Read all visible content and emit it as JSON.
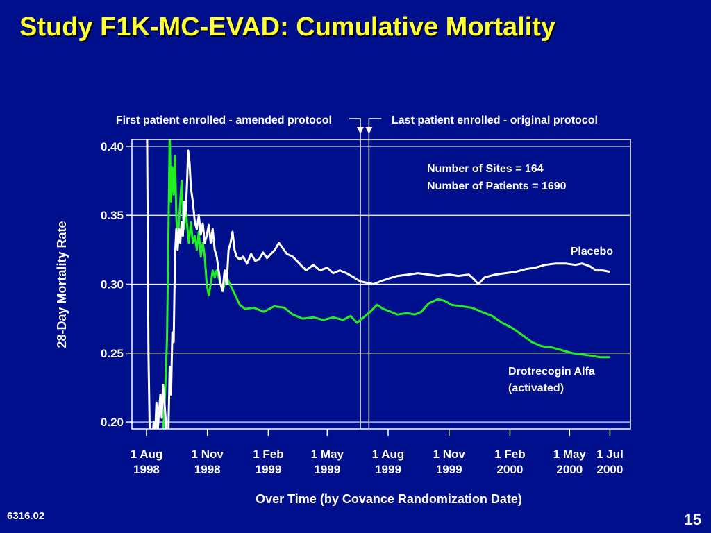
{
  "slide": {
    "title": "Study F1K-MC-EVAD: Cumulative Mortality",
    "slide_id": "6316.02",
    "page_number": "15"
  },
  "colors": {
    "background": "#000f8c",
    "title": "#ffff33",
    "placebo": "#ffffff",
    "drotrecogin": "#22ee22",
    "grid": "#ffffff"
  },
  "chart_data": {
    "type": "line",
    "title": "",
    "xlabel": "Over Time (by Covance Randomization Date)",
    "ylabel": "28-Day Mortality Rate",
    "ylim": [
      0.195,
      0.405
    ],
    "yticks": [
      0.2,
      0.25,
      0.3,
      0.35,
      0.4
    ],
    "ytick_labels": [
      "0.20",
      "0.25",
      "0.30",
      "0.35",
      "0.40"
    ],
    "xlim": [
      "1998-07-10",
      "2000-08-01"
    ],
    "xticks": [
      {
        "date": "1998-08-01",
        "label": [
          "1 Aug",
          "1998"
        ]
      },
      {
        "date": "1998-11-01",
        "label": [
          "1 Nov",
          "1998"
        ]
      },
      {
        "date": "1999-02-01",
        "label": [
          "1 Feb",
          "1999"
        ]
      },
      {
        "date": "1999-05-01",
        "label": [
          "1 May",
          "1999"
        ]
      },
      {
        "date": "1999-08-01",
        "label": [
          "1 Aug",
          "1999"
        ]
      },
      {
        "date": "1999-11-01",
        "label": [
          "1 Nov",
          "1999"
        ]
      },
      {
        "date": "2000-02-01",
        "label": [
          "1 Feb",
          "2000"
        ]
      },
      {
        "date": "2000-05-01",
        "label": [
          "1 May",
          "2000"
        ]
      },
      {
        "date": "2000-07-01",
        "label": [
          "1 Jul",
          "2000"
        ]
      }
    ],
    "grid": true,
    "reference_lines": [
      {
        "date": "1999-06-20",
        "label": "First patient enrolled - amended protocol"
      },
      {
        "date": "1999-07-03",
        "label": "Last patient enrolled - original protocol"
      }
    ],
    "annotations": [
      "Number of Sites = 164",
      "Number of Patients = 1690"
    ],
    "series": [
      {
        "name": "Placebo",
        "color": "#ffffff",
        "points": [
          [
            "1998-08-02",
            0.405
          ],
          [
            "1998-08-04",
            0.25
          ],
          [
            "1998-08-06",
            0.19
          ],
          [
            "1998-08-10",
            0.19
          ],
          [
            "1998-08-12",
            0.2
          ],
          [
            "1998-08-14",
            0.19
          ],
          [
            "1998-08-16",
            0.214
          ],
          [
            "1998-08-18",
            0.195
          ],
          [
            "1998-08-22",
            0.22
          ],
          [
            "1998-08-24",
            0.203
          ],
          [
            "1998-08-26",
            0.227
          ],
          [
            "1998-08-28",
            0.215
          ],
          [
            "1998-08-31",
            0.195
          ],
          [
            "1998-09-03",
            0.19
          ],
          [
            "1998-09-05",
            0.24
          ],
          [
            "1998-09-07",
            0.22
          ],
          [
            "1998-09-09",
            0.265
          ],
          [
            "1998-09-11",
            0.258
          ],
          [
            "1998-09-13",
            0.32
          ],
          [
            "1998-09-15",
            0.34
          ],
          [
            "1998-09-17",
            0.325
          ],
          [
            "1998-09-19",
            0.34
          ],
          [
            "1998-09-21",
            0.33
          ],
          [
            "1998-09-23",
            0.345
          ],
          [
            "1998-09-25",
            0.335
          ],
          [
            "1998-09-27",
            0.36
          ],
          [
            "1998-09-29",
            0.35
          ],
          [
            "1998-10-01",
            0.37
          ],
          [
            "1998-10-03",
            0.397
          ],
          [
            "1998-10-05",
            0.388
          ],
          [
            "1998-10-07",
            0.37
          ],
          [
            "1998-10-10",
            0.36
          ],
          [
            "1998-10-13",
            0.345
          ],
          [
            "1998-10-16",
            0.34
          ],
          [
            "1998-10-19",
            0.35
          ],
          [
            "1998-10-22",
            0.336
          ],
          [
            "1998-10-25",
            0.344
          ],
          [
            "1998-10-28",
            0.33
          ],
          [
            "1998-10-31",
            0.335
          ],
          [
            "1998-11-03",
            0.343
          ],
          [
            "1998-11-06",
            0.33
          ],
          [
            "1998-11-09",
            0.34
          ],
          [
            "1998-11-12",
            0.325
          ],
          [
            "1998-11-15",
            0.32
          ],
          [
            "1998-11-18",
            0.31
          ],
          [
            "1998-11-21",
            0.3
          ],
          [
            "1998-11-24",
            0.295
          ],
          [
            "1998-11-27",
            0.31
          ],
          [
            "1998-11-30",
            0.3
          ],
          [
            "1998-12-03",
            0.325
          ],
          [
            "1998-12-06",
            0.33
          ],
          [
            "1998-12-09",
            0.338
          ],
          [
            "1998-12-12",
            0.325
          ],
          [
            "1998-12-15",
            0.32
          ],
          [
            "1998-12-20",
            0.318
          ],
          [
            "1998-12-25",
            0.32
          ],
          [
            "1998-12-31",
            0.315
          ],
          [
            "1999-01-06",
            0.322
          ],
          [
            "1999-01-12",
            0.317
          ],
          [
            "1999-01-18",
            0.318
          ],
          [
            "1999-01-24",
            0.323
          ],
          [
            "1999-01-30",
            0.319
          ],
          [
            "1999-02-05",
            0.322
          ],
          [
            "1999-02-11",
            0.325
          ],
          [
            "1999-02-17",
            0.33
          ],
          [
            "1999-02-23",
            0.326
          ],
          [
            "1999-03-01",
            0.322
          ],
          [
            "1999-03-10",
            0.32
          ],
          [
            "1999-03-20",
            0.315
          ],
          [
            "1999-03-30",
            0.31
          ],
          [
            "1999-04-10",
            0.314
          ],
          [
            "1999-04-20",
            0.31
          ],
          [
            "1999-05-01",
            0.312
          ],
          [
            "1999-05-10",
            0.308
          ],
          [
            "1999-05-20",
            0.31
          ],
          [
            "1999-05-30",
            0.308
          ],
          [
            "1999-06-10",
            0.305
          ],
          [
            "1999-06-20",
            0.302
          ],
          [
            "1999-06-30",
            0.301
          ],
          [
            "1999-07-10",
            0.3
          ],
          [
            "1999-07-20",
            0.302
          ],
          [
            "1999-08-01",
            0.304
          ],
          [
            "1999-08-15",
            0.306
          ],
          [
            "1999-09-01",
            0.307
          ],
          [
            "1999-09-15",
            0.308
          ],
          [
            "1999-10-01",
            0.307
          ],
          [
            "1999-10-15",
            0.306
          ],
          [
            "1999-11-01",
            0.307
          ],
          [
            "1999-11-15",
            0.306
          ],
          [
            "1999-12-01",
            0.307
          ],
          [
            "1999-12-10",
            0.303
          ],
          [
            "1999-12-15",
            0.3
          ],
          [
            "1999-12-25",
            0.305
          ],
          [
            "2000-01-10",
            0.307
          ],
          [
            "2000-01-25",
            0.308
          ],
          [
            "2000-02-10",
            0.309
          ],
          [
            "2000-02-25",
            0.311
          ],
          [
            "2000-03-10",
            0.312
          ],
          [
            "2000-03-25",
            0.314
          ],
          [
            "2000-04-10",
            0.315
          ],
          [
            "2000-04-25",
            0.315
          ],
          [
            "2000-05-10",
            0.314
          ],
          [
            "2000-05-20",
            0.315
          ],
          [
            "2000-06-01",
            0.313
          ],
          [
            "2000-06-10",
            0.31
          ],
          [
            "2000-06-20",
            0.31
          ],
          [
            "2000-07-01",
            0.309
          ]
        ]
      },
      {
        "name": "Drotrecogin Alfa (activated)",
        "label_lines": [
          "Drotrecogin Alfa",
          "(activated)"
        ],
        "color": "#22ee22",
        "points": [
          [
            "1998-08-26",
            0.19
          ],
          [
            "1998-08-29",
            0.22
          ],
          [
            "1998-09-01",
            0.26
          ],
          [
            "1998-09-03",
            0.33
          ],
          [
            "1998-09-05",
            0.41
          ],
          [
            "1998-09-07",
            0.36
          ],
          [
            "1998-09-09",
            0.385
          ],
          [
            "1998-09-11",
            0.365
          ],
          [
            "1998-09-13",
            0.393
          ],
          [
            "1998-09-15",
            0.35
          ],
          [
            "1998-09-17",
            0.33
          ],
          [
            "1998-09-19",
            0.345
          ],
          [
            "1998-09-21",
            0.36
          ],
          [
            "1998-09-23",
            0.375
          ],
          [
            "1998-09-25",
            0.35
          ],
          [
            "1998-09-27",
            0.34
          ],
          [
            "1998-09-29",
            0.36
          ],
          [
            "1998-10-01",
            0.345
          ],
          [
            "1998-10-04",
            0.33
          ],
          [
            "1998-10-07",
            0.345
          ],
          [
            "1998-10-10",
            0.33
          ],
          [
            "1998-10-13",
            0.335
          ],
          [
            "1998-10-16",
            0.325
          ],
          [
            "1998-10-19",
            0.338
          ],
          [
            "1998-10-22",
            0.32
          ],
          [
            "1998-10-25",
            0.33
          ],
          [
            "1998-10-28",
            0.32
          ],
          [
            "1998-10-31",
            0.3
          ],
          [
            "1998-11-03",
            0.292
          ],
          [
            "1998-11-06",
            0.3
          ],
          [
            "1998-11-09",
            0.31
          ],
          [
            "1998-11-12",
            0.305
          ],
          [
            "1998-11-15",
            0.31
          ],
          [
            "1998-11-18",
            0.305
          ],
          [
            "1998-11-21",
            0.3
          ],
          [
            "1998-11-24",
            0.295
          ],
          [
            "1998-11-27",
            0.3
          ],
          [
            "1998-11-30",
            0.305
          ],
          [
            "1998-12-05",
            0.3
          ],
          [
            "1998-12-10",
            0.295
          ],
          [
            "1998-12-15",
            0.29
          ],
          [
            "1998-12-20",
            0.285
          ],
          [
            "1998-12-28",
            0.282
          ],
          [
            "1999-01-10",
            0.283
          ],
          [
            "1999-01-25",
            0.28
          ],
          [
            "1999-02-10",
            0.284
          ],
          [
            "1999-02-25",
            0.283
          ],
          [
            "1999-03-10",
            0.278
          ],
          [
            "1999-03-25",
            0.275
          ],
          [
            "1999-04-10",
            0.276
          ],
          [
            "1999-04-25",
            0.274
          ],
          [
            "1999-05-10",
            0.276
          ],
          [
            "1999-05-25",
            0.274
          ],
          [
            "1999-06-05",
            0.277
          ],
          [
            "1999-06-15",
            0.272
          ],
          [
            "1999-06-25",
            0.276
          ],
          [
            "1999-07-05",
            0.28
          ],
          [
            "1999-07-15",
            0.285
          ],
          [
            "1999-07-25",
            0.282
          ],
          [
            "1999-08-05",
            0.28
          ],
          [
            "1999-08-15",
            0.278
          ],
          [
            "1999-08-30",
            0.279
          ],
          [
            "1999-09-10",
            0.278
          ],
          [
            "1999-09-20",
            0.28
          ],
          [
            "1999-10-01",
            0.286
          ],
          [
            "1999-10-15",
            0.289
          ],
          [
            "1999-10-25",
            0.288
          ],
          [
            "1999-11-05",
            0.285
          ],
          [
            "1999-11-20",
            0.284
          ],
          [
            "1999-12-05",
            0.283
          ],
          [
            "1999-12-20",
            0.28
          ],
          [
            "2000-01-05",
            0.277
          ],
          [
            "2000-01-20",
            0.272
          ],
          [
            "2000-02-05",
            0.268
          ],
          [
            "2000-02-20",
            0.263
          ],
          [
            "2000-03-05",
            0.258
          ],
          [
            "2000-03-20",
            0.255
          ],
          [
            "2000-04-05",
            0.254
          ],
          [
            "2000-04-20",
            0.252
          ],
          [
            "2000-05-05",
            0.25
          ],
          [
            "2000-05-20",
            0.249
          ],
          [
            "2000-06-05",
            0.248
          ],
          [
            "2000-06-15",
            0.247
          ],
          [
            "2000-07-01",
            0.247
          ]
        ]
      }
    ]
  }
}
